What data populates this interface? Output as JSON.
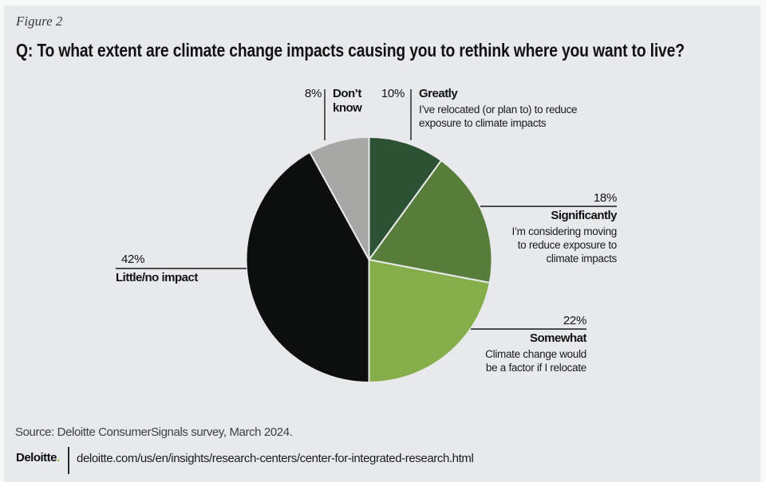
{
  "figure_label": "Figure 2",
  "question": "Q: To what extent are climate change impacts causing you to rethink where you want to live?",
  "chart_data": {
    "type": "pie",
    "title": "Q: To what extent are climate change impacts causing you to rethink where you want to live?",
    "unit": "%",
    "start_angle": "12 o'clock, clockwise",
    "legend_position": "callout labels around pie",
    "segments": [
      {
        "label": "Greatly",
        "description": "I’ve relocated (or plan to) to reduce exposure to climate impacts",
        "value_pct": 10,
        "color": "#2c5233"
      },
      {
        "label": "Significantly",
        "description": "I’m considering moving to reduce exposure to climate impacts",
        "value_pct": 18,
        "color": "#577d3a"
      },
      {
        "label": "Somewhat",
        "description": "Climate change would be a factor if I relocate",
        "value_pct": 22,
        "color": "#85ae4b"
      },
      {
        "label": "Little/no impact",
        "description": "",
        "value_pct": 42,
        "color": "#0d0e0e"
      },
      {
        "label": "Don’t know",
        "description": "",
        "value_pct": 8,
        "color": "#a7a7a5"
      }
    ]
  },
  "labels": {
    "dont_know": {
      "pct": "8%",
      "title": "Don’t know"
    },
    "greatly": {
      "pct": "10%",
      "title": "Greatly",
      "desc_lines": [
        "I’ve relocated (or plan to) to reduce",
        "exposure to climate impacts"
      ]
    },
    "significantly": {
      "pct": "18%",
      "title": "Significantly",
      "desc_lines": [
        "I’m considering moving",
        "to reduce exposure to",
        "climate impacts"
      ]
    },
    "somewhat": {
      "pct": "22%",
      "title": "Somewhat",
      "desc_lines": [
        "Climate change would",
        "be a factor if I relocate"
      ]
    },
    "little_no_impact": {
      "pct": "42%",
      "title": "Little/no impact"
    }
  },
  "footer": {
    "source": "Source: Deloitte ConsumerSignals survey, March 2024.",
    "logo_wordmark": "Deloitte",
    "logo_dot": ".",
    "logo_dot_color": "#86bc25",
    "url": "deloitte.com/us/en/insights/research-centers/center-for-integrated-research.html"
  },
  "colors": {
    "background": "#e8e9ea",
    "slice_stroke": "#e8e9ea",
    "leader_line": "#191919",
    "frame": "#f7f8f8"
  }
}
